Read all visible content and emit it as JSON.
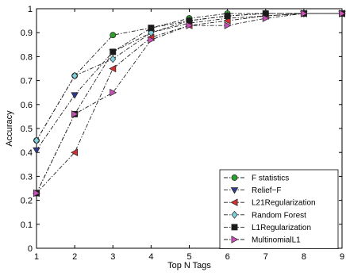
{
  "chart_data": {
    "type": "line",
    "title": "",
    "xlabel": "Top N Tags",
    "ylabel": "Accuracy",
    "x": [
      1,
      2,
      3,
      4,
      5,
      6,
      7,
      8,
      9
    ],
    "xlim": [
      1,
      9
    ],
    "ylim": [
      0,
      1
    ],
    "xticks": [
      "1",
      "2",
      "3",
      "4",
      "5",
      "6",
      "7",
      "8",
      "9"
    ],
    "yticks": [
      "0",
      "0.1",
      "0.2",
      "0.3",
      "0.4",
      "0.5",
      "0.6",
      "0.7",
      "0.8",
      "0.9",
      "1"
    ],
    "grid": false,
    "legend_position": "bottom-right",
    "series": [
      {
        "name": "F statistics",
        "marker": "circle",
        "color": "#2e9e2e",
        "values": [
          0.45,
          0.72,
          0.89,
          0.92,
          0.96,
          0.98,
          0.98,
          0.98,
          0.98
        ]
      },
      {
        "name": "Relief−F",
        "marker": "triangle-down",
        "color": "#303a8c",
        "values": [
          0.41,
          0.64,
          0.82,
          0.9,
          0.94,
          0.96,
          0.97,
          0.98,
          0.98
        ]
      },
      {
        "name": "L21Regularization",
        "marker": "triangle-left",
        "color": "#d42f2f",
        "values": [
          0.23,
          0.4,
          0.75,
          0.88,
          0.93,
          0.95,
          0.97,
          0.98,
          0.98
        ]
      },
      {
        "name": "Random Forest",
        "marker": "diamond",
        "color": "#7fd0dc",
        "values": [
          0.45,
          0.72,
          0.79,
          0.9,
          0.95,
          0.97,
          0.98,
          0.98,
          0.98
        ]
      },
      {
        "name": "L1Regularization",
        "marker": "square",
        "color": "#1a1a1a",
        "values": [
          0.23,
          0.56,
          0.82,
          0.92,
          0.95,
          0.97,
          0.98,
          0.98,
          0.98
        ]
      },
      {
        "name": "MultinomialL1",
        "marker": "triangle-right",
        "color": "#c84fb8",
        "values": [
          0.23,
          0.56,
          0.65,
          0.87,
          0.93,
          0.93,
          0.96,
          0.98,
          0.98
        ]
      }
    ]
  }
}
